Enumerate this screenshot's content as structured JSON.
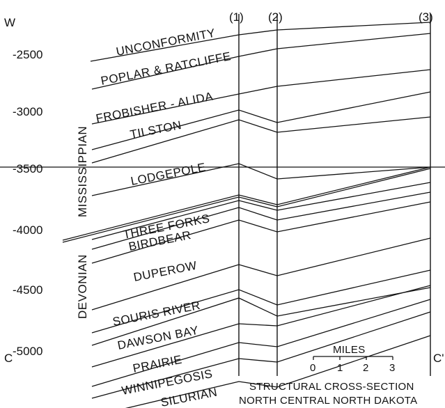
{
  "corner_labels": {
    "top_left": "W",
    "bottom_left": "C",
    "bottom_right": "C'"
  },
  "wells": [
    "(1)",
    "(2)",
    "(3)"
  ],
  "depth_ticks": [
    "-2500",
    "-3000",
    "-3500",
    "-4000",
    "-4500",
    "-5000"
  ],
  "systems": [
    "MISSISSIPPIAN",
    "DEVONIAN"
  ],
  "formations": [
    "UNCONFORMITY",
    "POPLAR & RATCLIFFE",
    "FROBISHER - ALIDA",
    "TILSTON",
    "LODGEPOLE",
    "THREE FORKS",
    "BIRDBEAR",
    "DUPEROW",
    "SOURIS RIVER",
    "DAWSON BAY",
    "PRAIRIE",
    "WINNIPEGOSIS",
    "SILURIAN"
  ],
  "scale": {
    "title": "MILES",
    "ticks": [
      "0",
      "1",
      "2",
      "3"
    ]
  },
  "title_lines": [
    "STRUCTURAL CROSS-SECTION",
    "NORTH CENTRAL NORTH DAKOTA"
  ],
  "colors": {
    "ink": "#111111",
    "background": "#ffffff"
  }
}
